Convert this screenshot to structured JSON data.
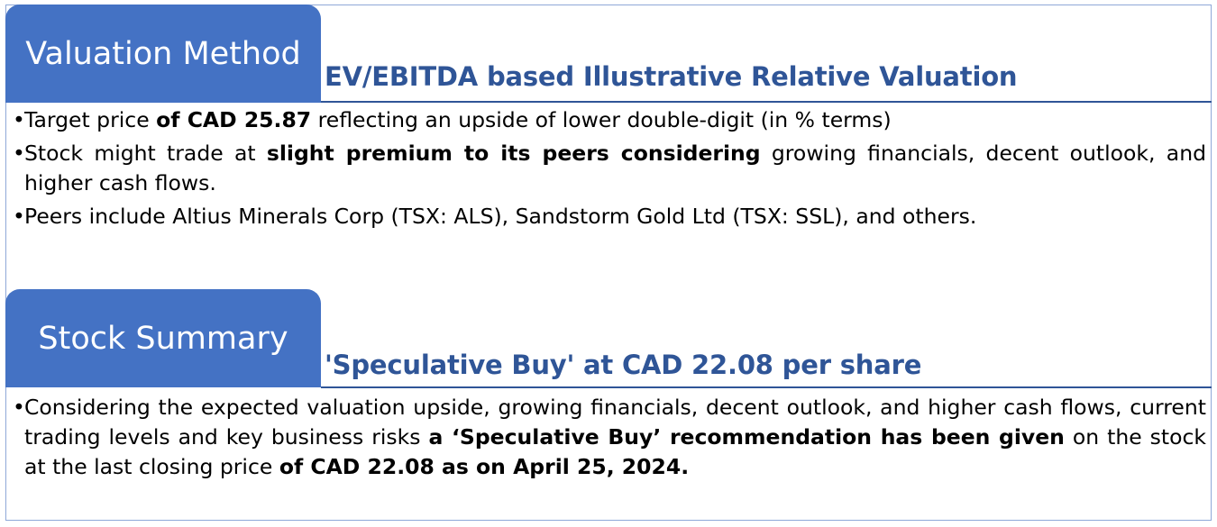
{
  "sections": [
    {
      "tab_title": "Valuation Method",
      "subtitle": "EV/EBITDA based Illustrative Relative Valuation",
      "bullets": [
        {
          "text_1": "Target price ",
          "bold_1": "of CAD 25.87",
          "text_2": " reflecting an upside of lower double-digit (in % terms)"
        },
        {
          "text_1": "Stock might trade at ",
          "bold_1": "slight premium to its peers considering",
          "text_2": " growing financials, decent outlook, and higher cash flows."
        },
        {
          "text_1": "Peers include Altius Minerals Corp (TSX: ALS), Sandstorm Gold Ltd (TSX: SSL), and others."
        }
      ]
    },
    {
      "tab_title": "Stock Summary",
      "subtitle": "'Speculative Buy' at CAD 22.08 per share",
      "bullets": [
        {
          "text_1": "Considering the expected valuation upside, growing financials, decent outlook, and higher cash flows, current trading levels and key business risks ",
          "bold_1": "a ‘Speculative Buy’ recommendation has been given",
          "text_2": " on the stock at the last closing price ",
          "bold_2": "of CAD 22.08 as on April 25, 2024."
        }
      ]
    }
  ],
  "bullet_glyph": "•",
  "colors": {
    "tab_bg": "#4472c4",
    "subtitle": "#2f5597",
    "frame_border": "#8fa8d8"
  }
}
